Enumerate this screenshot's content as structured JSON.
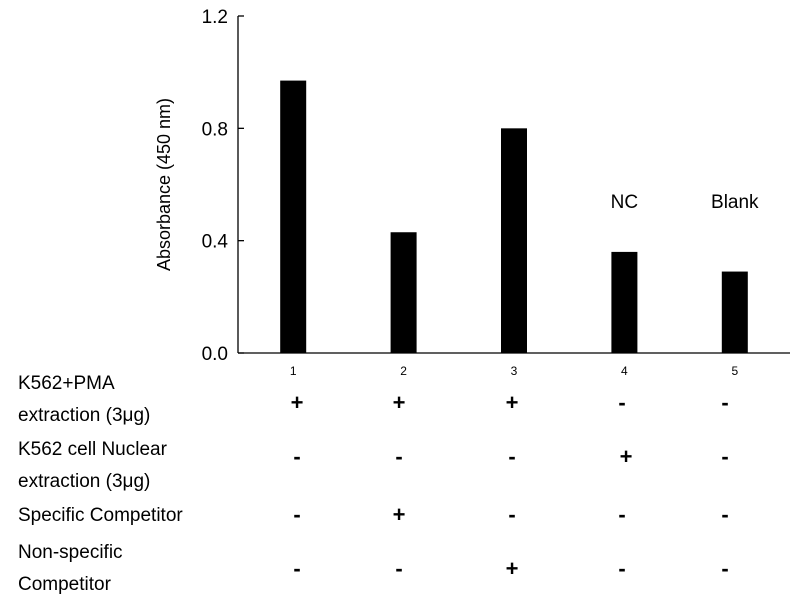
{
  "chart_data": {
    "type": "bar",
    "categories": [
      "1",
      "2",
      "3",
      "4",
      "5"
    ],
    "values": [
      0.97,
      0.43,
      0.8,
      0.36,
      0.29
    ],
    "ylabel": "Absorbance (450 nm)",
    "ylim": [
      0,
      1.2
    ],
    "yticks": [
      "0.0",
      "0.4",
      "0.8",
      "1.2"
    ],
    "annotations": [
      {
        "category": "4",
        "text": "NC"
      },
      {
        "category": "5",
        "text": "Blank"
      }
    ],
    "bar_color": "#000000",
    "grid": false
  },
  "conditions": [
    {
      "label_lines": [
        "K562+PMA",
        "extraction (3μg)"
      ],
      "values": [
        "+",
        "+",
        "+",
        "-",
        "-"
      ]
    },
    {
      "label_lines": [
        "K562 cell Nuclear",
        "extraction (3μg)"
      ],
      "values": [
        "-",
        "-",
        "-",
        "+",
        "-"
      ]
    },
    {
      "label_lines": [
        "Specific Competitor"
      ],
      "values": [
        "-",
        "+",
        "-",
        "-",
        "-"
      ]
    },
    {
      "label_lines": [
        "Non-specific",
        "Competitor"
      ],
      "values": [
        "-",
        "-",
        "+",
        "-",
        "-"
      ]
    }
  ]
}
